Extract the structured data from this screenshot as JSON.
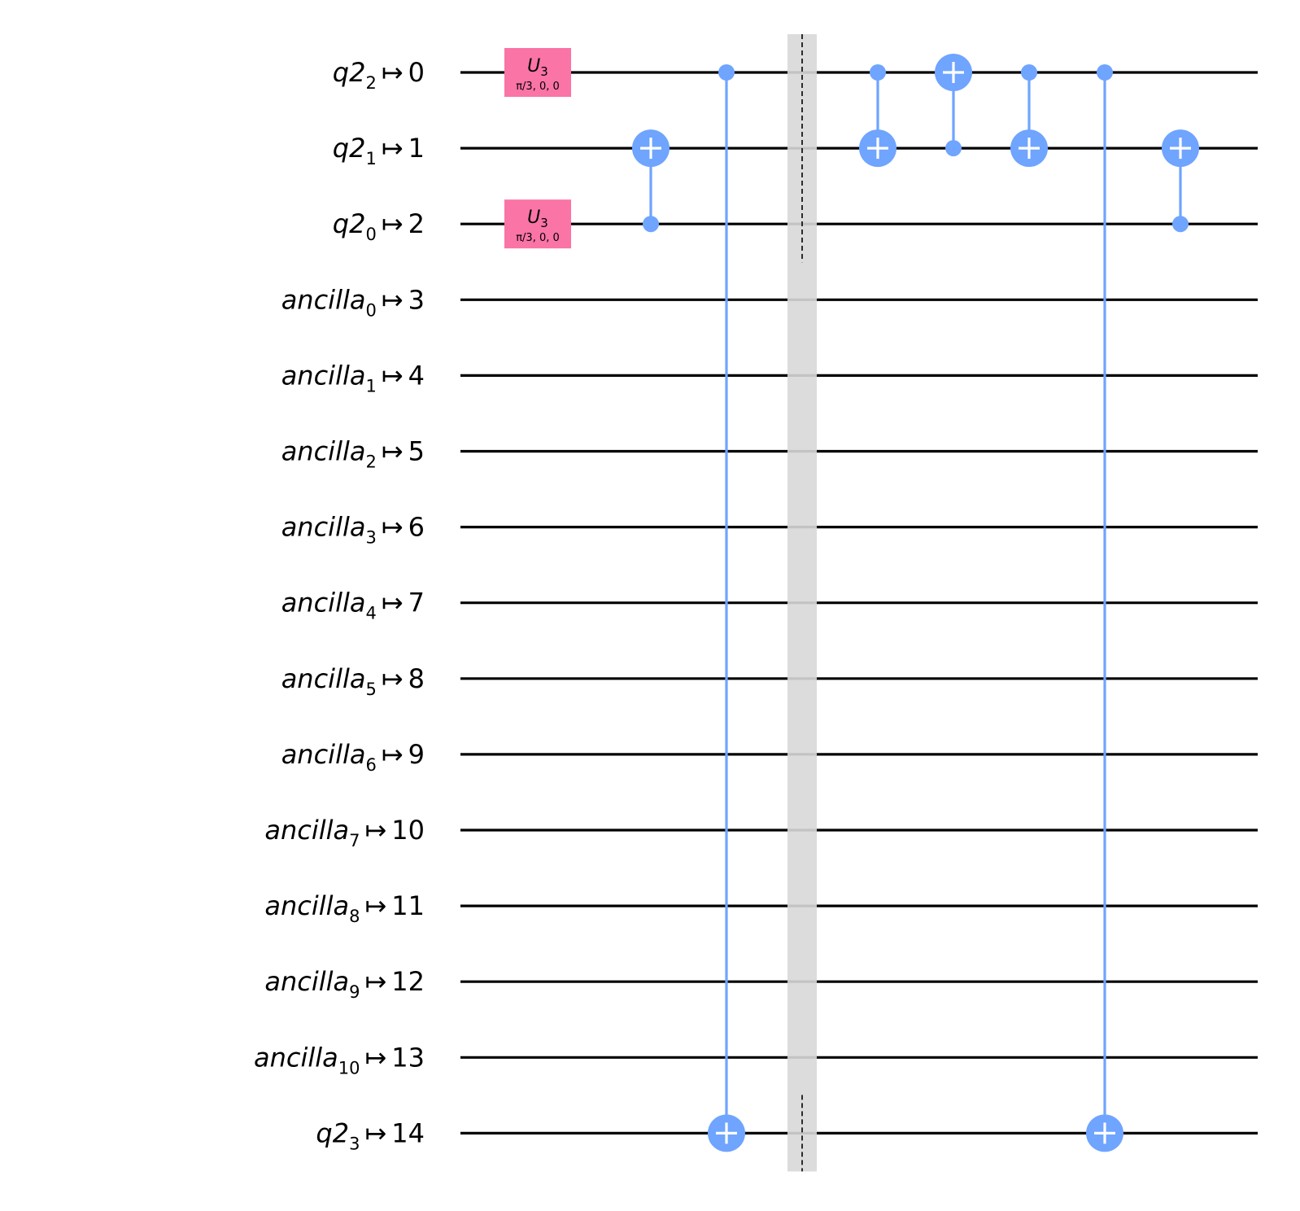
{
  "colors": {
    "wire": "#000000",
    "cnot": "#6fa4ff",
    "u3_gate": "#fa74a6",
    "barrier": "#d8d8d8",
    "barrier_line": "#000000"
  },
  "qubits": [
    {
      "reg": "q2",
      "index": "2",
      "maps_to": "0"
    },
    {
      "reg": "q2",
      "index": "1",
      "maps_to": "1"
    },
    {
      "reg": "q2",
      "index": "0",
      "maps_to": "2"
    },
    {
      "reg": "ancilla",
      "index": "0",
      "maps_to": "3"
    },
    {
      "reg": "ancilla",
      "index": "1",
      "maps_to": "4"
    },
    {
      "reg": "ancilla",
      "index": "2",
      "maps_to": "5"
    },
    {
      "reg": "ancilla",
      "index": "3",
      "maps_to": "6"
    },
    {
      "reg": "ancilla",
      "index": "4",
      "maps_to": "7"
    },
    {
      "reg": "ancilla",
      "index": "5",
      "maps_to": "8"
    },
    {
      "reg": "ancilla",
      "index": "6",
      "maps_to": "9"
    },
    {
      "reg": "ancilla",
      "index": "7",
      "maps_to": "10"
    },
    {
      "reg": "ancilla",
      "index": "8",
      "maps_to": "11"
    },
    {
      "reg": "ancilla",
      "index": "9",
      "maps_to": "12"
    },
    {
      "reg": "ancilla",
      "index": "10",
      "maps_to": "13"
    },
    {
      "reg": "q2",
      "index": "3",
      "maps_to": "14"
    }
  ],
  "arrow_symbol": "↦",
  "gates": [
    {
      "type": "u3",
      "column": 1,
      "qubit": 0,
      "label": "U",
      "label_sub": "3",
      "params": "π/3, 0, 0"
    },
    {
      "type": "u3",
      "column": 1,
      "qubit": 2,
      "label": "U",
      "label_sub": "3",
      "params": "π/3, 0, 0"
    },
    {
      "type": "cx",
      "column": 2,
      "control": 2,
      "target": 1
    },
    {
      "type": "cx",
      "column": 3,
      "control": 0,
      "target": 14
    },
    {
      "type": "barrier",
      "column": 4,
      "qubits": [
        0,
        1,
        2,
        14
      ]
    },
    {
      "type": "cx",
      "column": 5,
      "control": 0,
      "target": 1
    },
    {
      "type": "cx",
      "column": 6,
      "control": 1,
      "target": 0
    },
    {
      "type": "cx",
      "column": 7,
      "control": 0,
      "target": 1
    },
    {
      "type": "cx",
      "column": 8,
      "control": 0,
      "target": 14
    },
    {
      "type": "cx",
      "column": 9,
      "control": 2,
      "target": 1
    }
  ]
}
